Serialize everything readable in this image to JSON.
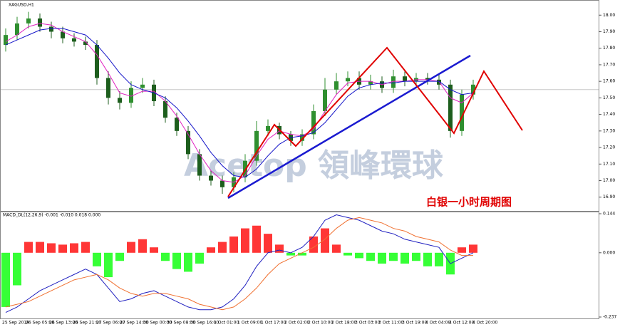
{
  "chart_data": [
    {
      "type": "candlestick",
      "title": "XAGUSD,H1",
      "open": [
        17.82,
        17.88,
        17.95,
        17.98,
        17.93,
        17.9,
        17.86,
        17.84,
        17.82,
        17.62,
        17.5,
        17.47,
        17.56,
        17.58,
        17.48,
        17.38,
        17.3,
        17.16,
        17.03,
        17.0,
        16.96,
        17.02,
        17.12,
        17.3,
        17.33,
        17.28,
        17.24,
        17.28,
        17.42,
        17.55,
        17.6,
        17.62,
        17.58,
        17.6,
        17.56,
        17.63,
        17.6,
        17.62,
        17.61,
        17.58,
        17.3,
        17.52
      ],
      "high": [
        17.92,
        17.99,
        18.02,
        18.01,
        17.96,
        17.93,
        17.89,
        17.87,
        17.85,
        17.66,
        17.54,
        17.6,
        17.62,
        17.61,
        17.51,
        17.41,
        17.33,
        17.19,
        17.06,
        17.03,
        17.05,
        17.16,
        17.36,
        17.37,
        17.35,
        17.3,
        17.31,
        17.46,
        17.62,
        17.65,
        17.66,
        17.66,
        17.64,
        17.63,
        17.67,
        17.66,
        17.65,
        17.65,
        17.64,
        17.61,
        17.55,
        17.61
      ],
      "low": [
        17.78,
        17.85,
        17.92,
        17.9,
        17.86,
        17.83,
        17.81,
        17.79,
        17.58,
        17.46,
        17.43,
        17.44,
        17.53,
        17.45,
        17.35,
        17.27,
        17.13,
        17.0,
        16.97,
        16.92,
        16.93,
        16.99,
        17.09,
        17.27,
        17.25,
        17.21,
        17.21,
        17.25,
        17.39,
        17.52,
        17.57,
        17.55,
        17.55,
        17.53,
        17.53,
        17.57,
        17.57,
        17.58,
        17.55,
        17.26,
        17.27,
        17.49
      ],
      "close": [
        17.88,
        17.95,
        17.98,
        17.93,
        17.9,
        17.86,
        17.84,
        17.82,
        17.62,
        17.5,
        17.47,
        17.56,
        17.58,
        17.48,
        17.38,
        17.3,
        17.16,
        17.03,
        17.0,
        16.96,
        17.02,
        17.12,
        17.3,
        17.33,
        17.28,
        17.24,
        17.28,
        17.42,
        17.55,
        17.6,
        17.62,
        17.58,
        17.6,
        17.56,
        17.63,
        17.6,
        17.62,
        17.61,
        17.58,
        17.3,
        17.52,
        17.58
      ],
      "up_color": "#2f8f2f",
      "down_color": "#1d5e1d",
      "series": [
        {
          "color": "#e020c0",
          "values": [
            17.84,
            17.88,
            17.93,
            17.95,
            17.94,
            17.9,
            17.87,
            17.84,
            17.76,
            17.65,
            17.53,
            17.51,
            17.54,
            17.54,
            17.48,
            17.39,
            17.28,
            17.16,
            17.06,
            17.0,
            16.99,
            17.03,
            17.15,
            17.25,
            17.3,
            17.28,
            17.27,
            17.31,
            17.42,
            17.52,
            17.59,
            17.6,
            17.6,
            17.58,
            17.6,
            17.6,
            17.61,
            17.61,
            17.6,
            17.5,
            17.47,
            17.53
          ]
        },
        {
          "color": "#1414c8",
          "values": [
            17.82,
            17.85,
            17.88,
            17.91,
            17.92,
            17.92,
            17.9,
            17.88,
            17.82,
            17.74,
            17.65,
            17.58,
            17.55,
            17.53,
            17.5,
            17.44,
            17.36,
            17.27,
            17.17,
            17.09,
            17.03,
            17.02,
            17.07,
            17.15,
            17.22,
            17.26,
            17.27,
            17.29,
            17.35,
            17.43,
            17.51,
            17.56,
            17.58,
            17.59,
            17.59,
            17.6,
            17.6,
            17.6,
            17.6,
            17.55,
            17.52,
            17.53
          ]
        }
      ],
      "price_line": 17.55,
      "ylim": [
        16.83,
        18.07
      ],
      "yticks": [
        {
          "value": 18.0,
          "label": "18.00"
        },
        {
          "value": 17.9,
          "label": "17.90"
        },
        {
          "value": 17.8,
          "label": "17.80"
        },
        {
          "value": 17.7,
          "label": "17.70"
        },
        {
          "value": 17.6,
          "label": "17.60"
        },
        {
          "value": 17.5,
          "label": "17.50"
        },
        {
          "value": 17.4,
          "label": "17.40"
        },
        {
          "value": 17.3,
          "label": "17.30"
        },
        {
          "value": 17.2,
          "label": "17.20"
        },
        {
          "value": 17.1,
          "label": "17.10"
        },
        {
          "value": 17.0,
          "label": "17.00"
        },
        {
          "value": 16.9,
          "label": "16.90"
        }
      ],
      "annotation": "白银一小时周期图",
      "watermark": "Acetop 領峰環球"
    },
    {
      "type": "macd",
      "title": "MACD_DL(12,26,9) -0.001 -0.010 0.018 0.000",
      "values": [
        -0.2,
        -0.12,
        0.04,
        0.04,
        0.035,
        0.03,
        0.035,
        0.04,
        -0.05,
        -0.09,
        -0.03,
        0.04,
        0.05,
        0.02,
        -0.03,
        -0.06,
        -0.07,
        -0.04,
        0.02,
        0.04,
        0.06,
        0.09,
        0.1,
        0.07,
        0.03,
        -0.01,
        -0.01,
        0.06,
        0.09,
        0.03,
        -0.01,
        -0.02,
        -0.03,
        -0.04,
        -0.03,
        -0.04,
        -0.03,
        -0.05,
        -0.05,
        -0.08,
        0.02,
        0.03
      ],
      "up_color": "#ff2020",
      "down_color": "#20ff20",
      "series": [
        {
          "color": "#2020c0",
          "values": [
            -0.22,
            -0.2,
            -0.17,
            -0.14,
            -0.12,
            -0.1,
            -0.08,
            -0.06,
            -0.08,
            -0.13,
            -0.18,
            -0.17,
            -0.15,
            -0.14,
            -0.16,
            -0.18,
            -0.2,
            -0.21,
            -0.21,
            -0.2,
            -0.17,
            -0.12,
            -0.05,
            0.0,
            0.01,
            0.0,
            0.02,
            0.06,
            0.12,
            0.14,
            0.13,
            0.12,
            0.1,
            0.08,
            0.07,
            0.05,
            0.04,
            0.03,
            0.02,
            -0.04,
            -0.02,
            0.0
          ]
        },
        {
          "color": "#f07030",
          "values": [
            -0.2,
            -0.19,
            -0.18,
            -0.16,
            -0.14,
            -0.12,
            -0.1,
            -0.09,
            -0.08,
            -0.1,
            -0.13,
            -0.15,
            -0.16,
            -0.15,
            -0.15,
            -0.16,
            -0.17,
            -0.19,
            -0.2,
            -0.21,
            -0.2,
            -0.17,
            -0.13,
            -0.08,
            -0.04,
            -0.02,
            0.0,
            0.02,
            0.05,
            0.09,
            0.12,
            0.13,
            0.12,
            0.11,
            0.09,
            0.08,
            0.06,
            0.05,
            0.04,
            0.01,
            -0.01,
            -0.01
          ]
        }
      ],
      "ylim": [
        -0.237,
        0.144
      ],
      "yticks": [
        {
          "value": 0.144,
          "label": "0.144"
        },
        {
          "value": 0,
          "label": "0.000"
        },
        {
          "value": -0.237,
          "label": "-0.237"
        }
      ],
      "time_labels": [
        "25 Sep 2019",
        "26 Sep 05:00",
        "26 Sep 13:00",
        "26 Sep 21:00",
        "27 Sep 06:00",
        "27 Sep 14:00",
        "30 Sep 00:00",
        "30 Sep 08:00",
        "30 Sep 16:00",
        "1 Oct 01:00",
        "1 Oct 09:00",
        "1 Oct 17:00",
        "2 Oct 02:00",
        "2 Oct 10:00",
        "2 Oct 18:00",
        "3 Oct 03:00",
        "3 Oct 11:00",
        "3 Oct 19:00",
        "4 Oct 04:00",
        "4 Oct 12:00",
        "4 Oct 20:00"
      ]
    }
  ]
}
